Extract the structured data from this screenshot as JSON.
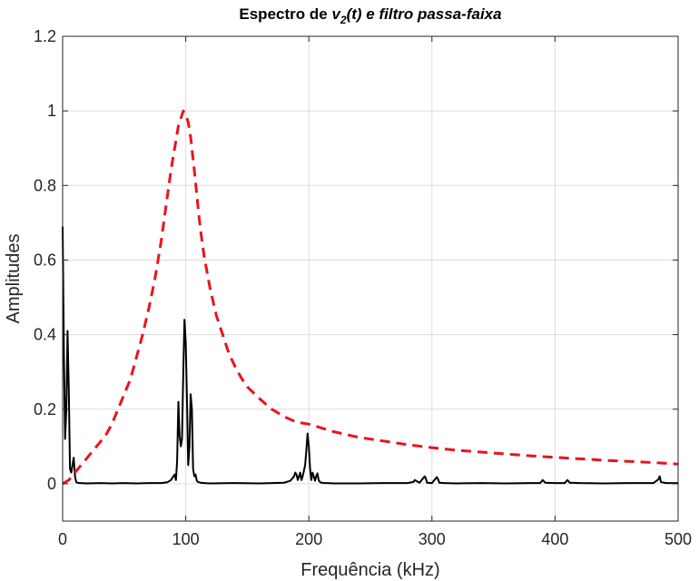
{
  "chart_data": {
    "type": "line",
    "title": {
      "prefix": "Espectro de ",
      "var": "v",
      "sub": "2",
      "suffix": "(t) e filtro passa-faixa"
    },
    "xlabel": "Frequência (kHz)",
    "ylabel": "Amplitudes",
    "xlim": [
      0,
      500
    ],
    "ylim": [
      -0.1,
      1.2
    ],
    "xticks": [
      0,
      100,
      200,
      300,
      400,
      500
    ],
    "xtick_labels": [
      "0",
      "100",
      "200",
      "300",
      "400",
      "500"
    ],
    "yticks": [
      0,
      0.2,
      0.4,
      0.6,
      0.8,
      1,
      1.2
    ],
    "ytick_labels": [
      "0",
      "0.2",
      "0.4",
      "0.6",
      "0.8",
      "1",
      "1.2"
    ],
    "grid": true,
    "legend": "none",
    "series": [
      {
        "style": "solid",
        "color": "#000000",
        "x": [
          0,
          1,
          2,
          3,
          4,
          5,
          6,
          7,
          8,
          9,
          10,
          11,
          12,
          13,
          14,
          20,
          30,
          40,
          50,
          60,
          70,
          80,
          85,
          88,
          90,
          91,
          92,
          93,
          94,
          95,
          96,
          97,
          98,
          99,
          100,
          101,
          102,
          103,
          104,
          105,
          106,
          107,
          108,
          109,
          110,
          112,
          115,
          120,
          140,
          160,
          180,
          185,
          188,
          189,
          190,
          191,
          192,
          193,
          194,
          195,
          196,
          197,
          198,
          199,
          200,
          201,
          202,
          203,
          204,
          205,
          206,
          207,
          208,
          209,
          210,
          211,
          212,
          215,
          220,
          240,
          260,
          280,
          285,
          286,
          290,
          294,
          295,
          296,
          300,
          304,
          305,
          306,
          310,
          320,
          340,
          360,
          380,
          388,
          390,
          392,
          400,
          408,
          410,
          412,
          420,
          440,
          460,
          480,
          484,
          485,
          486,
          490,
          500
        ],
        "y": [
          0.69,
          0.35,
          0.12,
          0.2,
          0.41,
          0.25,
          0.04,
          0.03,
          0.05,
          0.07,
          0.02,
          0.005,
          0.003,
          0.002,
          0.002,
          0.001,
          0.002,
          0.001,
          0.002,
          0.001,
          0.002,
          0.002,
          0.004,
          0.01,
          0.02,
          0.025,
          0.01,
          0.06,
          0.22,
          0.13,
          0.1,
          0.12,
          0.3,
          0.44,
          0.38,
          0.22,
          0.05,
          0.1,
          0.24,
          0.2,
          0.04,
          0.02,
          0.025,
          0.008,
          0.005,
          0.003,
          0.002,
          0.001,
          0.002,
          0.001,
          0.003,
          0.008,
          0.02,
          0.03,
          0.025,
          0.01,
          0.02,
          0.03,
          0.01,
          0.02,
          0.035,
          0.05,
          0.09,
          0.135,
          0.1,
          0.04,
          0.01,
          0.03,
          0.02,
          0.008,
          0.02,
          0.028,
          0.01,
          0.005,
          0.003,
          0.003,
          0.002,
          0.002,
          0.001,
          0.001,
          0.002,
          0.002,
          0.005,
          0.01,
          0.003,
          0.02,
          0.015,
          0.003,
          0.002,
          0.018,
          0.012,
          0.003,
          0.002,
          0.001,
          0.002,
          0.001,
          0.002,
          0.002,
          0.01,
          0.003,
          0.002,
          0.002,
          0.01,
          0.003,
          0.002,
          0.001,
          0.002,
          0.002,
          0.012,
          0.02,
          0.005,
          0.002,
          0.002
        ]
      },
      {
        "style": "dashed",
        "color": "#e8141c",
        "x": [
          0,
          5,
          10,
          15,
          20,
          25,
          30,
          35,
          40,
          45,
          50,
          55,
          60,
          65,
          70,
          75,
          80,
          85,
          88,
          90,
          92,
          94,
          96,
          98,
          100,
          102,
          104,
          106,
          108,
          110,
          112,
          115,
          120,
          125,
          130,
          135,
          140,
          145,
          150,
          160,
          170,
          180,
          190,
          200,
          220,
          240,
          260,
          280,
          300,
          320,
          340,
          360,
          380,
          400,
          420,
          440,
          460,
          480,
          500
        ],
        "y": [
          0,
          0.01,
          0.03,
          0.05,
          0.07,
          0.09,
          0.11,
          0.13,
          0.16,
          0.2,
          0.24,
          0.28,
          0.34,
          0.4,
          0.47,
          0.55,
          0.65,
          0.77,
          0.84,
          0.88,
          0.92,
          0.96,
          0.98,
          1.0,
          0.99,
          0.97,
          0.93,
          0.87,
          0.81,
          0.74,
          0.68,
          0.61,
          0.52,
          0.45,
          0.4,
          0.35,
          0.315,
          0.285,
          0.26,
          0.228,
          0.2,
          0.18,
          0.165,
          0.16,
          0.14,
          0.125,
          0.115,
          0.105,
          0.097,
          0.09,
          0.085,
          0.08,
          0.075,
          0.071,
          0.067,
          0.063,
          0.06,
          0.057,
          0.053
        ]
      }
    ]
  }
}
